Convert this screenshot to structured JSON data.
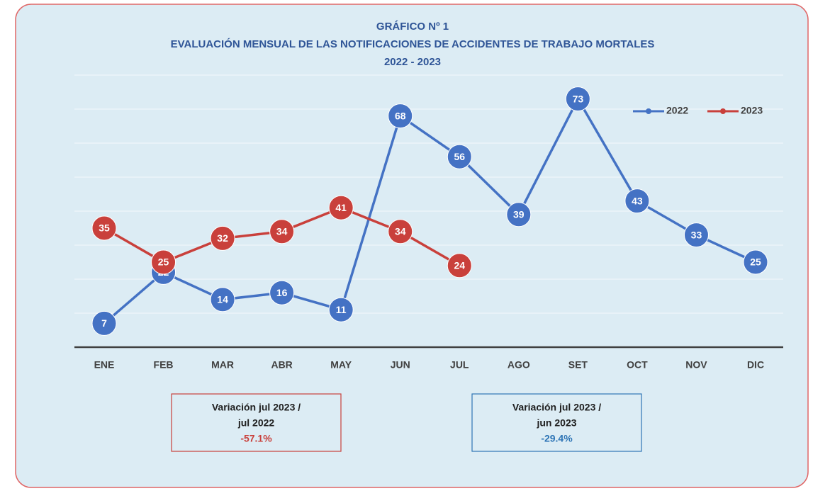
{
  "chart_data": {
    "type": "line",
    "title_lines": [
      "GRÁFICO Nº 1",
      "EVALUACIÓN MENSUAL DE LAS NOTIFICACIONES DE ACCIDENTES DE TRABAJO MORTALES",
      "2022 - 2023"
    ],
    "categories": [
      "ENE",
      "FEB",
      "MAR",
      "ABR",
      "MAY",
      "JUN",
      "JUL",
      "AGO",
      "SET",
      "OCT",
      "NOV",
      "DIC"
    ],
    "series": [
      {
        "name": "2022",
        "color": "#4472c4",
        "values": [
          7,
          22,
          14,
          16,
          11,
          68,
          56,
          39,
          73,
          43,
          33,
          25
        ]
      },
      {
        "name": "2023",
        "color": "#c9403b",
        "values": [
          35,
          25,
          32,
          34,
          41,
          34,
          24,
          null,
          null,
          null,
          null,
          null
        ]
      }
    ],
    "ylim": [
      0,
      80
    ],
    "yticks": [
      0,
      10,
      20,
      30,
      40,
      50,
      60,
      70,
      80
    ],
    "grid": true,
    "legend": "top-right",
    "annotations": [
      {
        "lines": [
          "Variación jul 2023 /",
          "jul 2022"
        ],
        "value": "-57.1%",
        "color": "#c9403b"
      },
      {
        "lines": [
          "Variación jul 2023 /",
          "jun 2023"
        ],
        "value": "-29.4%",
        "color": "#2e75b6"
      }
    ]
  }
}
